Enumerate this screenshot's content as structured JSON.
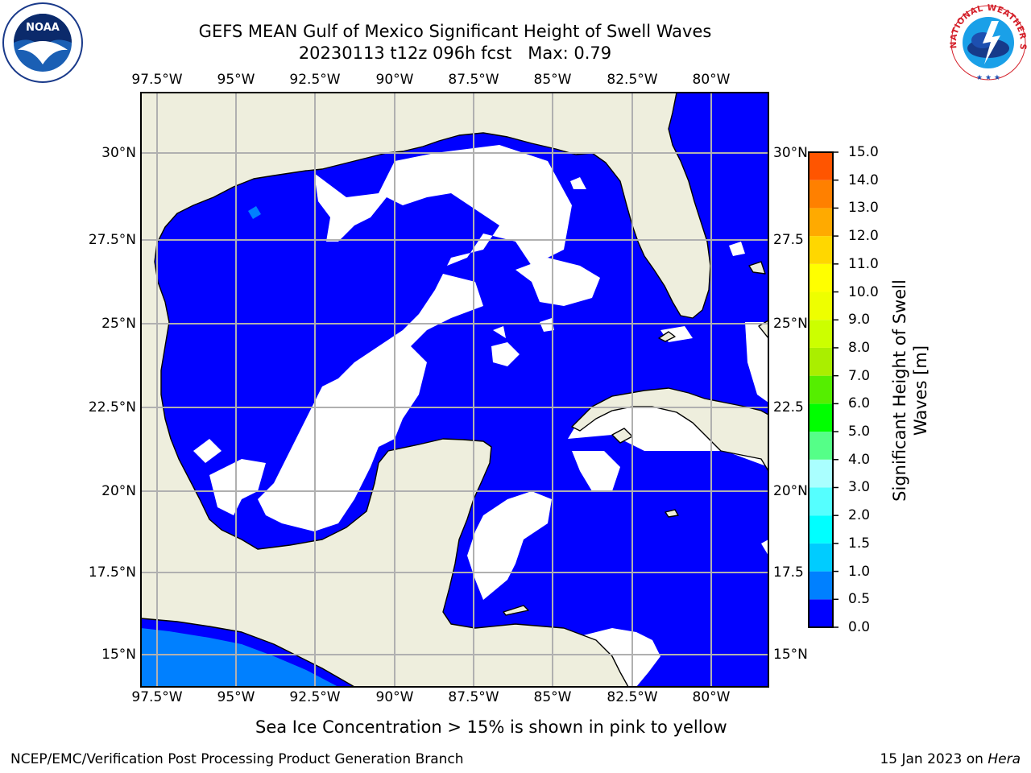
{
  "title": {
    "line1": "GEFS MEAN Gulf of Mexico Significant Height of Swell Waves",
    "line2": "20230113 t12z 096h fcst   Max: 0.79"
  },
  "map": {
    "projection": "plate carree",
    "lon_range": [
      -98.5,
      -78.5
    ],
    "lat_range": [
      14,
      31.5
    ],
    "lon_ticks": [
      "97.5°W",
      "95°W",
      "92.5°W",
      "90°W",
      "87.5°W",
      "85°W",
      "82.5°W",
      "80°W"
    ],
    "lat_ticks": [
      "30°N",
      "27.5°N",
      "25°N",
      "22.5°N",
      "20°N",
      "17.5°N",
      "15°N"
    ],
    "lat_ticks_right": [
      "30°N",
      "27.5",
      "25°N",
      "22.5",
      "20°N",
      "17.5",
      "15°N"
    ],
    "land_color": "#eeeedd",
    "grid_color": "#b0b0b0",
    "dominant_value_range_m": "0.0-0.5",
    "dominant_color": "#0000ff",
    "secondary_color": "#0080ff"
  },
  "colorbar": {
    "title_line1": "Significant Height of Swell",
    "title_line2": "Waves [m]",
    "levels": [
      "0.0",
      "0.5",
      "1.0",
      "1.5",
      "2.0",
      "3.0",
      "4.0",
      "5.0",
      "6.0",
      "7.0",
      "8.0",
      "9.0",
      "10.0",
      "11.0",
      "12.0",
      "13.0",
      "14.0",
      "15.0"
    ],
    "colors": [
      "#0000ff",
      "#0080ff",
      "#00ccff",
      "#00ffff",
      "#55ffff",
      "#aaffff",
      "#55ff88",
      "#00ff00",
      "#55ee00",
      "#aaee00",
      "#ccff00",
      "#eeff00",
      "#ffff00",
      "#ffd700",
      "#ffaa00",
      "#ff8000",
      "#ff5500",
      "#ff2a00",
      "#ff0000"
    ]
  },
  "note": "Sea Ice Concentration > 15% is shown in pink to yellow",
  "footer": {
    "left": "NCEP/EMC/Verification Post Processing Product Generation Branch",
    "right_prefix": "15 Jan 2023 on ",
    "right_host": "Hera"
  },
  "logos": {
    "noaa_text": "NOAA",
    "nws_text": "NATIONAL WEATHER SERVICE"
  }
}
